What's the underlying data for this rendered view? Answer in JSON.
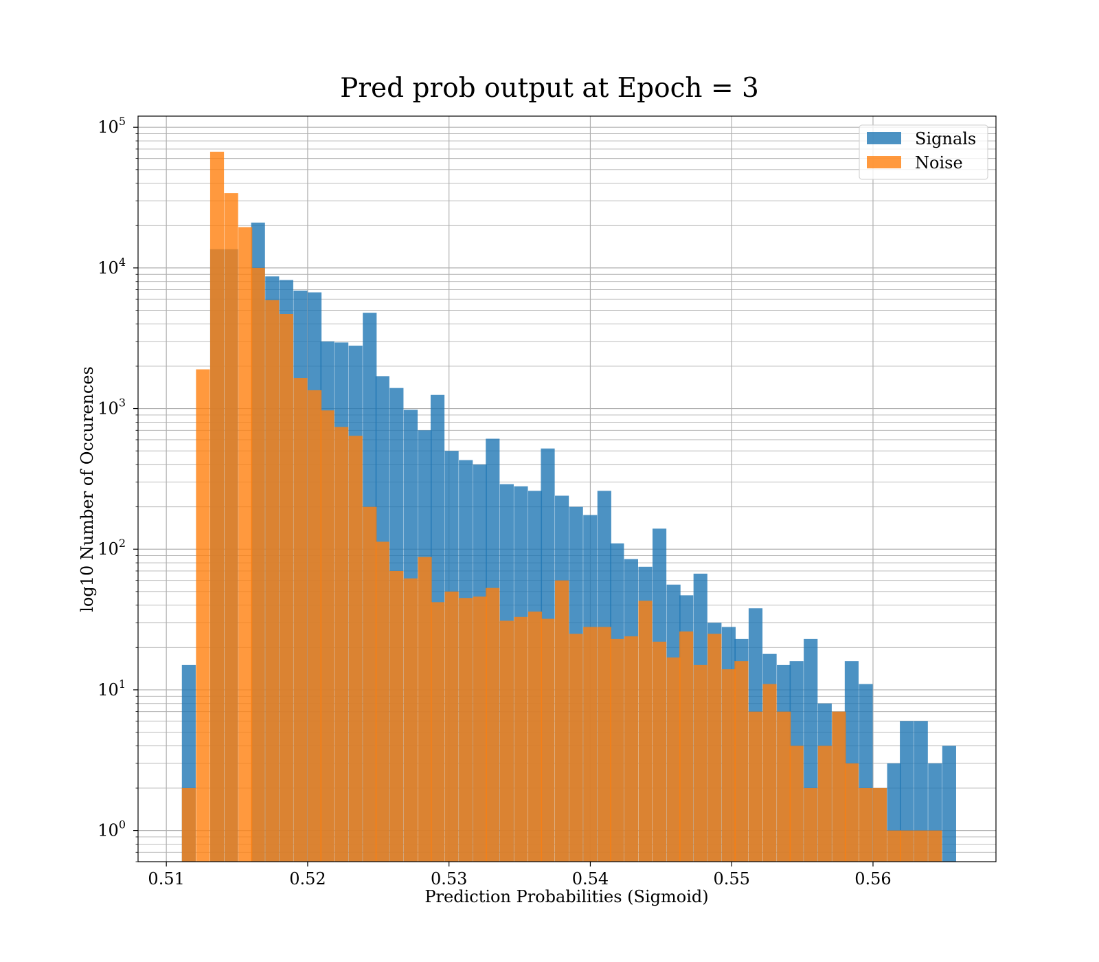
{
  "chart_data": {
    "type": "bar",
    "title": "Pred prob output at Epoch = 3",
    "xlabel": "Prediction Probabilities (Sigmoid)",
    "ylabel": "log10 Number of Occurences",
    "y_scale": "log",
    "xlim": [
      0.508,
      0.5687
    ],
    "ylim": [
      0.6,
      120000
    ],
    "bin_width": 0.00098,
    "grid": "on (major and minor)",
    "legend_position": "top-right",
    "x_ticks": [
      {
        "value": 0.51,
        "label": "0.51"
      },
      {
        "value": 0.52,
        "label": "0.52"
      },
      {
        "value": 0.53,
        "label": "0.53"
      },
      {
        "value": 0.54,
        "label": "0.54"
      },
      {
        "value": 0.55,
        "label": "0.55"
      },
      {
        "value": 0.56,
        "label": "0.56"
      }
    ],
    "y_ticks": [
      {
        "value": 1,
        "base": "10",
        "exp": "0"
      },
      {
        "value": 10,
        "base": "10",
        "exp": "1"
      },
      {
        "value": 100,
        "base": "10",
        "exp": "2"
      },
      {
        "value": 1000,
        "base": "10",
        "exp": "3"
      },
      {
        "value": 10000,
        "base": "10",
        "exp": "4"
      },
      {
        "value": 100000,
        "base": "10",
        "exp": "5"
      }
    ],
    "series": [
      {
        "name": "Signals",
        "color": "#1f77b4",
        "opacity": 0.8,
        "bins": [
          [
            0.5111,
            15
          ],
          [
            0.5131,
            13600
          ],
          [
            0.5141,
            13600
          ],
          [
            0.516,
            21000
          ],
          [
            0.517,
            8700
          ],
          [
            0.518,
            8200
          ],
          [
            0.519,
            6900
          ],
          [
            0.52,
            6700
          ],
          [
            0.5209,
            3000
          ],
          [
            0.5219,
            2950
          ],
          [
            0.5229,
            2800
          ],
          [
            0.5239,
            4800
          ],
          [
            0.5248,
            1700
          ],
          [
            0.5258,
            1400
          ],
          [
            0.5268,
            980
          ],
          [
            0.5278,
            700
          ],
          [
            0.5287,
            1250
          ],
          [
            0.5297,
            500
          ],
          [
            0.5307,
            430
          ],
          [
            0.5317,
            400
          ],
          [
            0.5326,
            610
          ],
          [
            0.5336,
            290
          ],
          [
            0.5346,
            280
          ],
          [
            0.5356,
            260
          ],
          [
            0.5365,
            520
          ],
          [
            0.5375,
            240
          ],
          [
            0.5385,
            200
          ],
          [
            0.5395,
            175
          ],
          [
            0.5405,
            260
          ],
          [
            0.5414,
            110
          ],
          [
            0.5424,
            85
          ],
          [
            0.5434,
            75
          ],
          [
            0.5444,
            140
          ],
          [
            0.5454,
            56
          ],
          [
            0.5463,
            47
          ],
          [
            0.5473,
            67
          ],
          [
            0.5483,
            30
          ],
          [
            0.5493,
            28
          ],
          [
            0.5502,
            23
          ],
          [
            0.5512,
            38
          ],
          [
            0.5522,
            18
          ],
          [
            0.5532,
            15
          ],
          [
            0.5541,
            16
          ],
          [
            0.5551,
            23
          ],
          [
            0.5561,
            8
          ],
          [
            0.5571,
            7
          ],
          [
            0.558,
            16
          ],
          [
            0.559,
            11
          ],
          [
            0.56,
            2
          ],
          [
            0.561,
            3
          ],
          [
            0.5619,
            6
          ],
          [
            0.5629,
            6
          ],
          [
            0.5639,
            3
          ],
          [
            0.5649,
            4
          ]
        ]
      },
      {
        "name": "Noise",
        "color": "#ff7f0e",
        "opacity": 0.8,
        "bins": [
          [
            0.5111,
            2
          ],
          [
            0.5121,
            1900
          ],
          [
            0.5131,
            67000
          ],
          [
            0.5141,
            34000
          ],
          [
            0.5151,
            19500
          ],
          [
            0.516,
            10000
          ],
          [
            0.517,
            5900
          ],
          [
            0.518,
            4700
          ],
          [
            0.519,
            1650
          ],
          [
            0.52,
            1350
          ],
          [
            0.5209,
            970
          ],
          [
            0.5219,
            740
          ],
          [
            0.5229,
            640
          ],
          [
            0.5239,
            200
          ],
          [
            0.5248,
            113
          ],
          [
            0.5258,
            70
          ],
          [
            0.5268,
            62
          ],
          [
            0.5278,
            88
          ],
          [
            0.5287,
            42
          ],
          [
            0.5297,
            50
          ],
          [
            0.5307,
            45
          ],
          [
            0.5317,
            46
          ],
          [
            0.5326,
            53
          ],
          [
            0.5336,
            31
          ],
          [
            0.5346,
            33
          ],
          [
            0.5356,
            36
          ],
          [
            0.5365,
            32
          ],
          [
            0.5375,
            60
          ],
          [
            0.5385,
            25
          ],
          [
            0.5395,
            28
          ],
          [
            0.5405,
            28
          ],
          [
            0.5414,
            23
          ],
          [
            0.5424,
            24
          ],
          [
            0.5434,
            43
          ],
          [
            0.5444,
            22
          ],
          [
            0.5454,
            17
          ],
          [
            0.5463,
            26
          ],
          [
            0.5473,
            15
          ],
          [
            0.5483,
            25
          ],
          [
            0.5493,
            14
          ],
          [
            0.5502,
            16
          ],
          [
            0.5512,
            7
          ],
          [
            0.5522,
            11
          ],
          [
            0.5532,
            7
          ],
          [
            0.5541,
            4
          ],
          [
            0.5551,
            2
          ],
          [
            0.5561,
            4
          ],
          [
            0.5571,
            7
          ],
          [
            0.558,
            3
          ],
          [
            0.559,
            2
          ],
          [
            0.56,
            2
          ],
          [
            0.561,
            1
          ],
          [
            0.5619,
            1
          ],
          [
            0.5629,
            1
          ],
          [
            0.5639,
            1
          ]
        ]
      }
    ]
  }
}
